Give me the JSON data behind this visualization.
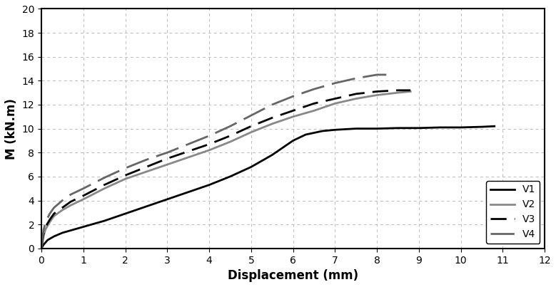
{
  "title": "",
  "xlabel": "Displacement (mm)",
  "ylabel": "M (kN.m)",
  "xlim": [
    0,
    12
  ],
  "ylim": [
    0,
    20
  ],
  "xticks": [
    0,
    1,
    2,
    3,
    4,
    5,
    6,
    7,
    8,
    9,
    10,
    11,
    12
  ],
  "yticks": [
    0,
    2,
    4,
    6,
    8,
    10,
    12,
    14,
    16,
    18,
    20
  ],
  "grid": true,
  "series": [
    {
      "label": "V1",
      "color": "#000000",
      "linestyle": "solid",
      "linewidth": 2.0,
      "x": [
        0.0,
        0.05,
        0.15,
        0.3,
        0.5,
        0.7,
        1.0,
        1.5,
        2.0,
        2.5,
        3.0,
        3.5,
        4.0,
        4.5,
        5.0,
        5.5,
        6.0,
        6.3,
        6.7,
        7.0,
        7.5,
        8.0,
        8.5,
        9.0,
        9.5,
        10.0,
        10.5,
        10.8
      ],
      "y": [
        0.0,
        0.3,
        0.7,
        1.0,
        1.3,
        1.5,
        1.8,
        2.3,
        2.9,
        3.5,
        4.1,
        4.7,
        5.3,
        6.0,
        6.8,
        7.8,
        9.0,
        9.5,
        9.8,
        9.9,
        10.0,
        10.0,
        10.05,
        10.05,
        10.1,
        10.1,
        10.15,
        10.2
      ]
    },
    {
      "label": "V2",
      "color": "#888888",
      "linestyle": "solid",
      "linewidth": 2.0,
      "x": [
        0.0,
        0.05,
        0.1,
        0.2,
        0.3,
        0.5,
        0.7,
        1.0,
        1.5,
        2.0,
        2.5,
        3.0,
        3.5,
        4.0,
        4.5,
        5.0,
        5.5,
        6.0,
        6.5,
        7.0,
        7.5,
        8.0,
        8.5,
        8.8
      ],
      "y": [
        0.0,
        1.0,
        1.6,
        2.2,
        2.7,
        3.2,
        3.6,
        4.1,
        5.0,
        5.8,
        6.4,
        7.0,
        7.6,
        8.2,
        8.9,
        9.7,
        10.4,
        11.0,
        11.5,
        12.1,
        12.5,
        12.8,
        13.0,
        13.1
      ]
    },
    {
      "label": "V3",
      "color": "#000000",
      "linestyle": "dashed",
      "linewidth": 2.0,
      "dash_pattern": [
        8,
        4
      ],
      "x": [
        0.0,
        0.05,
        0.1,
        0.2,
        0.3,
        0.5,
        0.7,
        1.0,
        1.5,
        2.0,
        2.5,
        3.0,
        3.5,
        4.0,
        4.5,
        5.0,
        5.5,
        6.0,
        6.5,
        7.0,
        7.5,
        8.0,
        8.5,
        8.8
      ],
      "y": [
        0.0,
        1.2,
        1.8,
        2.4,
        2.9,
        3.4,
        3.9,
        4.4,
        5.3,
        6.1,
        6.8,
        7.5,
        8.1,
        8.7,
        9.4,
        10.2,
        10.9,
        11.5,
        12.1,
        12.5,
        12.9,
        13.1,
        13.2,
        13.2
      ]
    },
    {
      "label": "V4",
      "color": "#666666",
      "linestyle": "dashed",
      "linewidth": 2.0,
      "dash_pattern": [
        12,
        4
      ],
      "x": [
        0.0,
        0.05,
        0.1,
        0.2,
        0.3,
        0.5,
        0.7,
        1.0,
        1.5,
        2.0,
        2.5,
        3.0,
        3.5,
        4.0,
        4.5,
        5.0,
        5.5,
        6.0,
        6.5,
        7.0,
        7.5,
        8.0,
        8.3
      ],
      "y": [
        0.0,
        1.5,
        2.2,
        2.9,
        3.4,
        4.0,
        4.5,
        5.0,
        5.9,
        6.7,
        7.4,
        8.0,
        8.7,
        9.4,
        10.2,
        11.1,
        12.0,
        12.7,
        13.3,
        13.8,
        14.2,
        14.5,
        14.5
      ]
    }
  ],
  "legend": {
    "loc": "lower right",
    "fontsize": 10,
    "frameon": true
  },
  "xlabel_fontsize": 12,
  "ylabel_fontsize": 12,
  "tick_fontsize": 10,
  "figsize": [
    7.79,
    4.03
  ],
  "dpi": 100
}
